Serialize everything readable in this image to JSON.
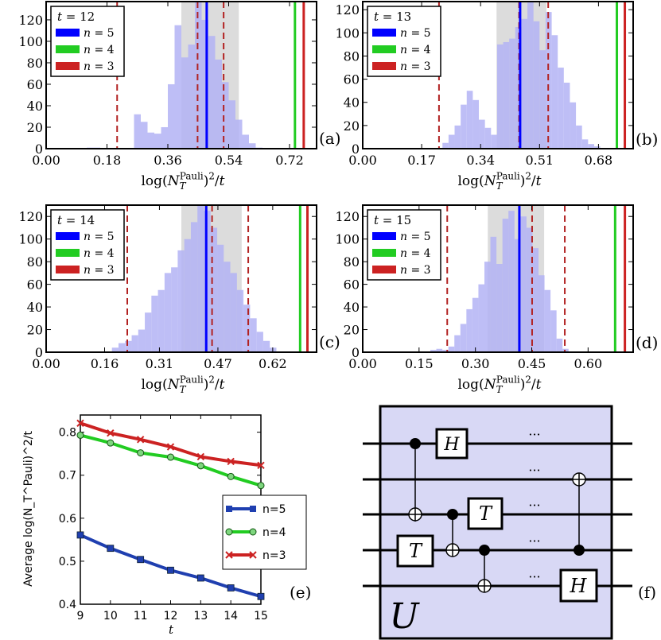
{
  "chart_data": [
    {
      "type": "bar",
      "panel_label": "(a)",
      "legend_title": "t = 12",
      "legend": [
        {
          "label": "n = 5",
          "color": "#0000ff"
        },
        {
          "label": "n = 4",
          "color": "#22cc22"
        },
        {
          "label": "n = 3",
          "color": "#cc2222"
        }
      ],
      "xlabel": "log(N_T^Pauli)^2/t",
      "x_ticks": [
        "0.00",
        "0.18",
        "0.36",
        "0.54",
        "0.72"
      ],
      "x_tick_values": [
        0.0,
        0.18,
        0.36,
        0.54,
        0.72
      ],
      "y_ticks": [
        "0",
        "20",
        "40",
        "60",
        "80",
        "100",
        "120"
      ],
      "xlim": [
        0,
        0.8
      ],
      "ylim": [
        0,
        137
      ],
      "bin_start": 0.12,
      "bin_width": 0.02,
      "counts": [
        1,
        1,
        0,
        0,
        0,
        0,
        0,
        32,
        25,
        15,
        14,
        20,
        60,
        115,
        85,
        97,
        137,
        120,
        105,
        83,
        62,
        45,
        27,
        13,
        5,
        1
      ],
      "shaded_band": [
        0.4,
        0.57
      ],
      "vlines": {
        "n5": 0.475,
        "n4": 0.736,
        "n3": 0.762
      },
      "dashed_lines": [
        0.21,
        0.448,
        0.525
      ]
    },
    {
      "type": "bar",
      "panel_label": "(b)",
      "legend_title": "t = 13",
      "legend": [
        {
          "label": "n = 5",
          "color": "#0000ff"
        },
        {
          "label": "n = 4",
          "color": "#22cc22"
        },
        {
          "label": "n = 3",
          "color": "#cc2222"
        }
      ],
      "xlabel": "log(N_T^Pauli)^2/t",
      "x_ticks": [
        "0.00",
        "0.17",
        "0.34",
        "0.51",
        "0.68"
      ],
      "x_tick_values": [
        0.0,
        0.17,
        0.34,
        0.51,
        0.68
      ],
      "y_ticks": [
        "0",
        "20",
        "40",
        "60",
        "80",
        "100",
        "120"
      ],
      "xlim": [
        0,
        0.78
      ],
      "ylim": [
        0,
        127
      ],
      "bin_start": 0.16,
      "bin_width": 0.0175,
      "counts": [
        0,
        0,
        0,
        0,
        5,
        12,
        20,
        38,
        50,
        42,
        25,
        18,
        12,
        90,
        92,
        95,
        105,
        112,
        127,
        110,
        85,
        118,
        98,
        70,
        57,
        40,
        20,
        8,
        4,
        2
      ],
      "shaded_band": [
        0.386,
        0.53
      ],
      "vlines": {
        "n5": 0.454,
        "n4": 0.733,
        "n3": 0.756
      },
      "dashed_lines": [
        0.22,
        0.451,
        0.535
      ]
    },
    {
      "type": "bar",
      "panel_label": "(c)",
      "legend_title": "t = 14",
      "legend": [
        {
          "label": "n = 5",
          "color": "#0000ff"
        },
        {
          "label": "n = 4",
          "color": "#22cc22"
        },
        {
          "label": "n = 3",
          "color": "#cc2222"
        }
      ],
      "xlabel": "log(N_T^Pauli)^2/t",
      "x_ticks": [
        "0.00",
        "0.16",
        "0.31",
        "0.47",
        "0.62"
      ],
      "x_tick_values": [
        0.0,
        0.16,
        0.31,
        0.47,
        0.62
      ],
      "y_ticks": [
        "0",
        "20",
        "40",
        "60",
        "80",
        "100",
        "120"
      ],
      "xlim": [
        0,
        0.74
      ],
      "ylim": [
        0,
        130
      ],
      "bin_start": 0.18,
      "bin_width": 0.018,
      "counts": [
        4,
        8,
        10,
        15,
        20,
        35,
        50,
        55,
        70,
        75,
        90,
        100,
        115,
        130,
        125,
        110,
        95,
        80,
        70,
        55,
        42,
        30,
        18,
        10,
        4
      ],
      "shaded_band": [
        0.37,
        0.535
      ],
      "vlines": {
        "n5": 0.438,
        "n4": 0.695,
        "n3": 0.715
      },
      "dashed_lines": [
        0.222,
        0.454,
        0.553
      ]
    },
    {
      "type": "bar",
      "panel_label": "(d)",
      "legend_title": "t = 15",
      "legend": [
        {
          "label": "n = 5",
          "color": "#0000ff"
        },
        {
          "label": "n = 4",
          "color": "#22cc22"
        },
        {
          "label": "n = 3",
          "color": "#cc2222"
        }
      ],
      "xlabel": "log(N_T^Pauli)^2/t",
      "x_ticks": [
        "0.00",
        "0.15",
        "0.30",
        "0.45",
        "0.60"
      ],
      "x_tick_values": [
        0.0,
        0.15,
        0.3,
        0.45,
        0.6
      ],
      "y_ticks": [
        "0",
        "20",
        "40",
        "60",
        "80",
        "100",
        "120"
      ],
      "xlim": [
        0,
        0.72
      ],
      "ylim": [
        0,
        130
      ],
      "bin_start": 0.18,
      "bin_width": 0.016,
      "counts": [
        2,
        3,
        2,
        5,
        15,
        25,
        38,
        48,
        60,
        80,
        102,
        78,
        118,
        125,
        100,
        120,
        110,
        92,
        68,
        55,
        37,
        12,
        3
      ],
      "shaded_band": [
        0.333,
        0.483
      ],
      "vlines": {
        "n5": 0.417,
        "n4": 0.672,
        "n3": 0.698
      },
      "dashed_lines": [
        0.225,
        0.451,
        0.538
      ]
    },
    {
      "type": "line",
      "panel_label": "(e)",
      "xlabel": "t",
      "ylabel": "Average log(N_T^Pauli)^2/t",
      "x": [
        9,
        10,
        11,
        12,
        13,
        14,
        15
      ],
      "x_ticks": [
        "9",
        "10",
        "11",
        "12",
        "13",
        "14",
        "15"
      ],
      "y_ticks": [
        "0.4",
        "0.5",
        "0.6",
        "0.7",
        "0.8"
      ],
      "xlim": [
        9,
        15
      ],
      "ylim": [
        0.4,
        0.84
      ],
      "grid": false,
      "legend_position": "lower-right",
      "series": [
        {
          "name": "n=5",
          "marker": "square",
          "color": "#1f3fb0",
          "values": [
            0.561,
            0.53,
            0.504,
            0.479,
            0.461,
            0.438,
            0.418
          ]
        },
        {
          "name": "n=4",
          "marker": "circle",
          "color": "#22cc22",
          "values": [
            0.793,
            0.775,
            0.752,
            0.742,
            0.722,
            0.697,
            0.676
          ]
        },
        {
          "name": "n=3",
          "marker": "x",
          "color": "#cc2222",
          "values": [
            0.821,
            0.798,
            0.783,
            0.766,
            0.743,
            0.732,
            0.723
          ]
        }
      ]
    }
  ],
  "circuit": {
    "panel_label": "(f)",
    "block_label": "U",
    "gates": [
      "H",
      "T",
      "T",
      "H"
    ],
    "ellipsis": "···"
  },
  "colors": {
    "hist_fill": "#b3b3f5",
    "band": "#dcdcdc",
    "dashed": "#b22222",
    "circuit_bg": "#d8d8f5"
  }
}
